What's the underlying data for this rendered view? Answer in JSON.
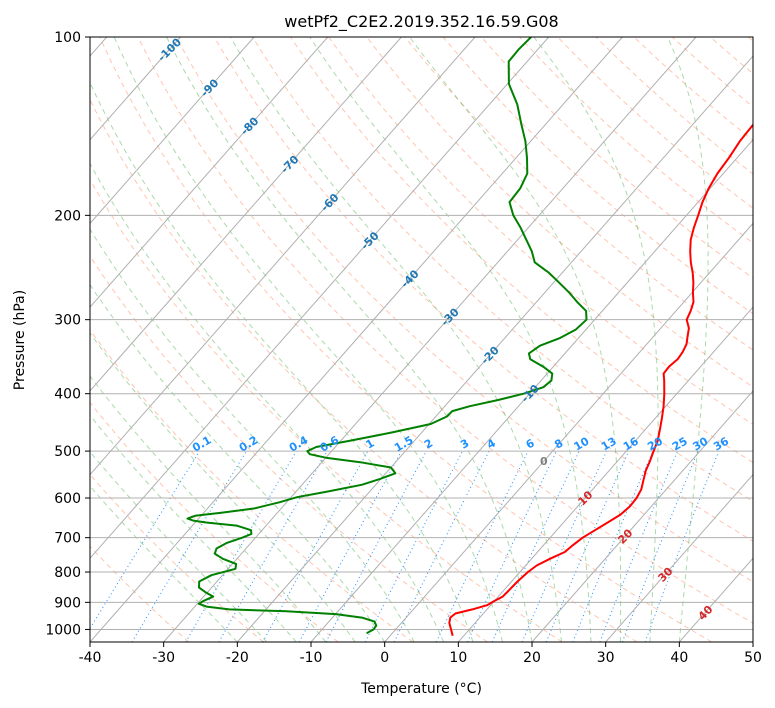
{
  "chart_data": {
    "type": "line",
    "title": "wetPf2_C2E2.2019.352.16.59.G08",
    "xlabel": "Temperature (°C)",
    "ylabel": "Pressure (hPa)",
    "xlim": [
      -40,
      50
    ],
    "ylim": [
      1050,
      100
    ],
    "y_scale": "log",
    "x_ticks": [
      -40,
      -30,
      -20,
      -10,
      0,
      10,
      20,
      30,
      40,
      50
    ],
    "y_ticks": [
      100,
      200,
      300,
      400,
      500,
      600,
      700,
      800,
      900,
      1000
    ],
    "grid": true,
    "skew_diagram": true,
    "series": [
      {
        "role": "temperature",
        "color": "#ff0000",
        "points": [
          [
            8.5,
            1025
          ],
          [
            7.5,
            1000
          ],
          [
            6.5,
            975
          ],
          [
            6.0,
            955
          ],
          [
            6.2,
            940
          ],
          [
            8.0,
            925
          ],
          [
            9.5,
            910
          ],
          [
            10.0,
            895
          ],
          [
            10.6,
            880
          ],
          [
            10.7,
            860
          ],
          [
            10.8,
            830
          ],
          [
            11.1,
            800
          ],
          [
            11.5,
            780
          ],
          [
            12.5,
            760
          ],
          [
            13.7,
            740
          ],
          [
            14.0,
            720
          ],
          [
            14.4,
            700
          ],
          [
            15.2,
            680
          ],
          [
            16.0,
            660
          ],
          [
            16.8,
            640
          ],
          [
            17.1,
            620
          ],
          [
            17.0,
            600
          ],
          [
            16.6,
            580
          ],
          [
            15.8,
            560
          ],
          [
            15.0,
            540
          ],
          [
            14.4,
            520
          ],
          [
            13.7,
            500
          ],
          [
            13.0,
            480
          ],
          [
            12.0,
            460
          ],
          [
            10.9,
            440
          ],
          [
            9.7,
            420
          ],
          [
            8.3,
            400
          ],
          [
            6.7,
            380
          ],
          [
            5.8,
            370
          ],
          [
            5.7,
            360
          ],
          [
            6.0,
            350
          ],
          [
            5.8,
            340
          ],
          [
            5.4,
            330
          ],
          [
            4.6,
            320
          ],
          [
            3.8,
            310
          ],
          [
            2.5,
            300
          ],
          [
            2.0,
            290
          ],
          [
            1.3,
            280
          ],
          [
            0.1,
            270
          ],
          [
            -1.0,
            260
          ],
          [
            -2.3,
            250
          ],
          [
            -3.8,
            240
          ],
          [
            -5.2,
            230
          ],
          [
            -6.5,
            220
          ],
          [
            -7.5,
            210
          ],
          [
            -8.4,
            200
          ],
          [
            -9.4,
            190
          ],
          [
            -10.2,
            180
          ],
          [
            -10.8,
            170
          ],
          [
            -11.1,
            160
          ],
          [
            -11.6,
            150
          ],
          [
            -11.8,
            140
          ],
          [
            -12.4,
            130
          ],
          [
            -13.6,
            120
          ],
          [
            -15.0,
            110
          ],
          [
            -16.5,
            105
          ],
          [
            -17.9,
            100
          ]
        ]
      },
      {
        "role": "dewpoint",
        "color": "#008000",
        "points": [
          [
            -3.5,
            1015
          ],
          [
            -3.0,
            1000
          ],
          [
            -3.1,
            985
          ],
          [
            -3.8,
            970
          ],
          [
            -6.0,
            955
          ],
          [
            -10.0,
            942
          ],
          [
            -17.0,
            932
          ],
          [
            -25.0,
            925
          ],
          [
            -28.4,
            915
          ],
          [
            -29.8,
            905
          ],
          [
            -29.5,
            895
          ],
          [
            -28.7,
            880
          ],
          [
            -30.3,
            865
          ],
          [
            -31.7,
            850
          ],
          [
            -32.4,
            830
          ],
          [
            -31.5,
            810
          ],
          [
            -29.0,
            790
          ],
          [
            -29.5,
            775
          ],
          [
            -31.9,
            760
          ],
          [
            -33.6,
            745
          ],
          [
            -34.0,
            730
          ],
          [
            -33.3,
            715
          ],
          [
            -31.8,
            700
          ],
          [
            -31.0,
            690
          ],
          [
            -31.5,
            680
          ],
          [
            -34.0,
            668
          ],
          [
            -38.5,
            660
          ],
          [
            -40.5,
            655
          ],
          [
            -41.5,
            650
          ],
          [
            -40.8,
            643
          ],
          [
            -37.5,
            635
          ],
          [
            -33.7,
            625
          ],
          [
            -31.0,
            610
          ],
          [
            -29.2,
            598
          ],
          [
            -25.7,
            585
          ],
          [
            -21.9,
            570
          ],
          [
            -20.1,
            557
          ],
          [
            -18.7,
            545
          ],
          [
            -20.0,
            533
          ],
          [
            -24.8,
            522
          ],
          [
            -30.0,
            513
          ],
          [
            -32.6,
            506
          ],
          [
            -33.3,
            500
          ],
          [
            -32.6,
            492
          ],
          [
            -28.7,
            480
          ],
          [
            -24.0,
            465
          ],
          [
            -19.8,
            450
          ],
          [
            -18.5,
            437
          ],
          [
            -18.4,
            428
          ],
          [
            -16.6,
            420
          ],
          [
            -13.5,
            410
          ],
          [
            -10.8,
            400
          ],
          [
            -8.9,
            390
          ],
          [
            -8.6,
            380
          ],
          [
            -9.3,
            370
          ],
          [
            -11.4,
            360
          ],
          [
            -14.0,
            350
          ],
          [
            -14.9,
            342
          ],
          [
            -14.3,
            332
          ],
          [
            -12.5,
            322
          ],
          [
            -11.4,
            312
          ],
          [
            -11.1,
            300
          ],
          [
            -12.2,
            290
          ],
          [
            -14.5,
            280
          ],
          [
            -16.7,
            270
          ],
          [
            -19.2,
            260
          ],
          [
            -21.8,
            250
          ],
          [
            -25.0,
            240
          ],
          [
            -26.7,
            230
          ],
          [
            -28.8,
            220
          ],
          [
            -31.0,
            210
          ],
          [
            -33.5,
            200
          ],
          [
            -35.6,
            190
          ],
          [
            -35.8,
            180
          ],
          [
            -36.6,
            170
          ],
          [
            -38.5,
            160
          ],
          [
            -40.7,
            150
          ],
          [
            -43.4,
            140
          ],
          [
            -46.2,
            130
          ],
          [
            -49.8,
            120
          ],
          [
            -52.5,
            110
          ],
          [
            -52.6,
            105
          ],
          [
            -52.4,
            100
          ]
        ]
      }
    ],
    "annotations": {
      "isotherm_labels": [
        "-100",
        "-90",
        "-80",
        "-70",
        "-60",
        "-50",
        "-40",
        "-30",
        "-20",
        "-10"
      ],
      "mixing_ratio_labels": [
        "0.1",
        "0.2",
        "0.4",
        "0.6",
        "1",
        "1.5",
        "2",
        "3",
        "4",
        "6",
        "8",
        "10",
        "13",
        "16",
        "20",
        "25",
        "30",
        "36"
      ],
      "zero_isotherm_label": "0",
      "warm_isotherm_labels": [
        "10",
        "20",
        "30",
        "40"
      ]
    },
    "colors": {
      "isotherm_labels": "#1f77b4",
      "mixing_ratio_lines": "#1e90ff",
      "dry_adiabats": "#ff7f50",
      "moist_adiabats": "#2ca02c",
      "warm_labels": "#d62728",
      "grid": "#b0b0b0"
    }
  }
}
